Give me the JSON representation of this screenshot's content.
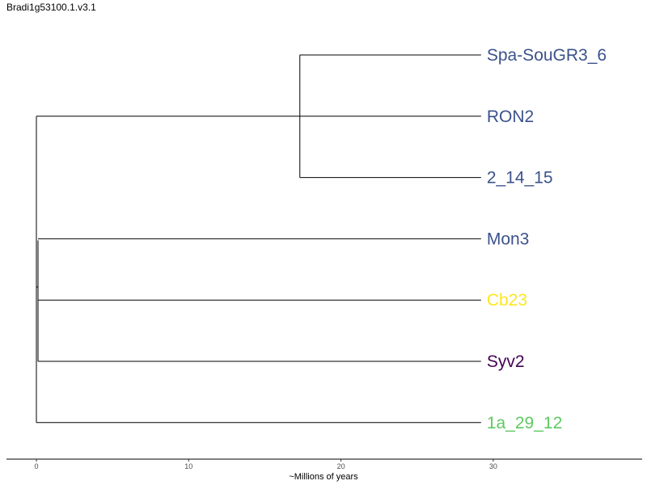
{
  "title": "Bradi1g53100.1.v3.1",
  "axis": {
    "label": "~Millions of years",
    "ticks": [
      "0",
      "10",
      "20",
      "30"
    ],
    "tick_values": [
      0,
      10,
      20,
      30
    ],
    "range": [
      -1.9,
      40
    ]
  },
  "leaves": [
    {
      "label": "Spa-SouGR3_6",
      "color": "#3b528b"
    },
    {
      "label": "RON2",
      "color": "#3b528b"
    },
    {
      "label": "2_14_15",
      "color": "#3b528b"
    },
    {
      "label": "Mon3",
      "color": "#3b528b"
    },
    {
      "label": "Cb23",
      "color": "#fde725"
    },
    {
      "label": "Syv2",
      "color": "#440154"
    },
    {
      "label": "1a_29_12",
      "color": "#5ec962"
    }
  ],
  "tree": {
    "clades": [
      {
        "name": "clade-spa-2_14",
        "depth": 17.3,
        "children": [
          0,
          2
        ]
      }
    ],
    "leaf_depth": 29.2
  }
}
